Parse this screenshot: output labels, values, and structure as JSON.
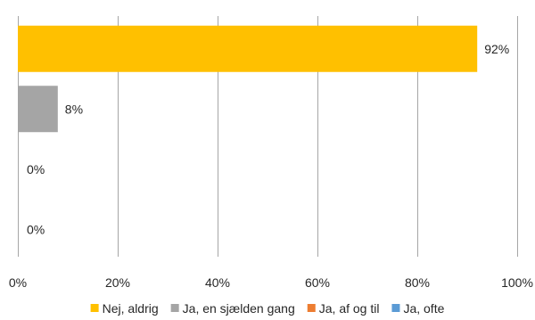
{
  "chart_data": {
    "type": "bar",
    "orientation": "horizontal",
    "title": "",
    "xlabel": "",
    "ylabel": "",
    "xlim": [
      0,
      100
    ],
    "x_ticks": [
      "0%",
      "20%",
      "40%",
      "60%",
      "80%",
      "100%"
    ],
    "grid": true,
    "legend_position": "bottom",
    "series": [
      {
        "name": "Nej, aldrig",
        "value": 92,
        "label": "92%",
        "color": "#FFC000"
      },
      {
        "name": "Ja, en sjælden gang",
        "value": 8,
        "label": "8%",
        "color": "#A5A5A5"
      },
      {
        "name": "Ja, af og til",
        "value": 0,
        "label": "0%",
        "color": "#ED7D31"
      },
      {
        "name": "Ja, ofte",
        "value": 0,
        "label": "0%",
        "color": "#5B9BD5"
      }
    ]
  }
}
